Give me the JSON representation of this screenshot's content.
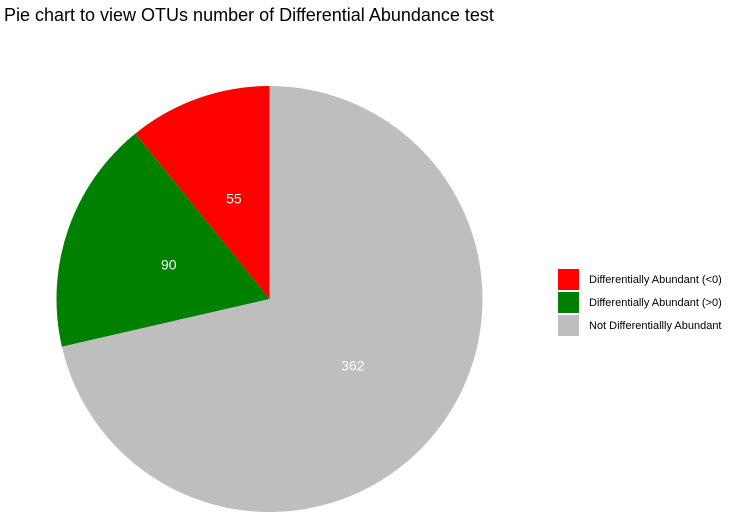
{
  "chart_data": {
    "type": "pie",
    "title": "Pie chart to view OTUs number of Differential Abundance test",
    "slices": [
      {
        "label": "Differentially Abundant (<0)",
        "value": 55,
        "color": "#ff0000",
        "display": "55"
      },
      {
        "label": "Differentially Abundant (>0)",
        "value": 90,
        "color": "#008000",
        "display": "90"
      },
      {
        "label": "Not Differentiallly Abundant",
        "value": 362,
        "color": "#bebebe",
        "display": "362"
      }
    ],
    "legend_position": "right"
  }
}
